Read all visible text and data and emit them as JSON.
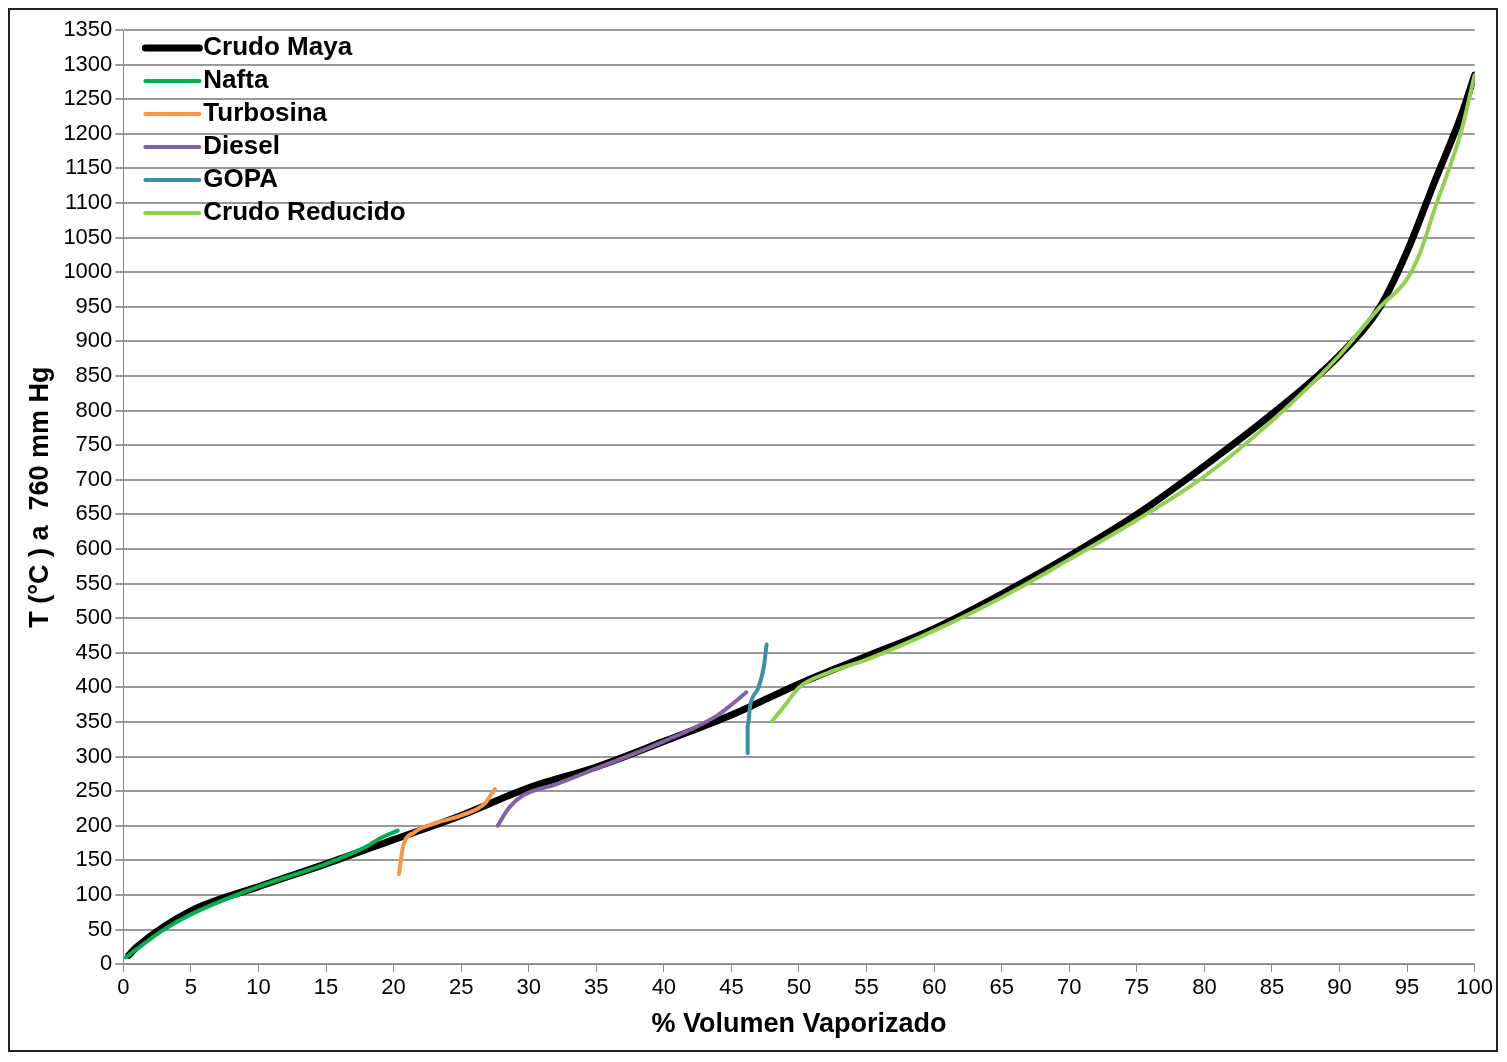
{
  "chart_data": {
    "type": "line",
    "xlabel": "% Volumen Vaporizado",
    "ylabel": "T (°C ) a  760 mm Hg",
    "xlim": [
      0,
      100
    ],
    "xticks": [
      0,
      5,
      10,
      15,
      20,
      25,
      30,
      35,
      40,
      45,
      50,
      55,
      60,
      65,
      70,
      75,
      80,
      85,
      90,
      95,
      100
    ],
    "ylim": [
      0,
      1350
    ],
    "yticks": [
      0,
      50,
      100,
      150,
      200,
      250,
      300,
      350,
      400,
      450,
      500,
      550,
      600,
      650,
      700,
      750,
      800,
      850,
      900,
      950,
      1000,
      1050,
      1100,
      1150,
      1200,
      1250,
      1300,
      1350
    ],
    "grid": "y",
    "legend": "top left",
    "marker": "none",
    "line_style": "solid",
    "series": [
      {
        "name": "Crudo Maya",
        "color": "#000000",
        "x": [
          0.4,
          1,
          5,
          10,
          15,
          20,
          25,
          30,
          35,
          40,
          45,
          50,
          55,
          60,
          65,
          70,
          75,
          80,
          85,
          90,
          93,
          95,
          97,
          99,
          100
        ],
        "values": [
          13,
          25,
          77,
          112,
          145,
          180,
          215,
          255,
          285,
          322,
          360,
          405,
          445,
          485,
          535,
          590,
          650,
          720,
          795,
          880,
          950,
          1030,
          1129,
          1226,
          1285
        ]
      },
      {
        "name": "Nafta",
        "color": "#00b050",
        "x": [
          0.2,
          1,
          3,
          5,
          10,
          15,
          18,
          19,
          20.3
        ],
        "values": [
          10,
          22,
          50,
          72,
          112,
          145,
          170,
          182,
          193
        ]
      },
      {
        "name": "Turbosina",
        "color": "#f79646",
        "x": [
          20.4,
          20.7,
          21.5,
          23,
          25,
          26.8,
          27.2,
          27.5
        ],
        "values": [
          130,
          170,
          190,
          203,
          215,
          233,
          245,
          253
        ]
      },
      {
        "name": "Diesel",
        "color": "#8064a2",
        "x": [
          27.7,
          28.5,
          29.5,
          32,
          35,
          40,
          44,
          45,
          46.1
        ],
        "values": [
          200,
          225,
          243,
          260,
          283,
          322,
          360,
          375,
          393
        ]
      },
      {
        "name": "GOPA",
        "color": "#3b8fa8",
        "x": [
          46.2,
          46.2,
          46.4,
          47,
          47.4,
          47.6
        ],
        "values": [
          305,
          345,
          375,
          400,
          430,
          462
        ]
      },
      {
        "name": "Crudo Reducido",
        "color": "#92d050",
        "x": [
          48,
          49,
          50,
          52,
          55,
          60,
          65,
          70,
          75,
          80,
          85,
          90,
          93,
          95,
          96,
          97,
          99,
          100
        ],
        "values": [
          351,
          375,
          400,
          420,
          440,
          482,
          530,
          585,
          642,
          705,
          785,
          880,
          950,
          990,
          1030,
          1089,
          1203,
          1285
        ]
      }
    ]
  }
}
